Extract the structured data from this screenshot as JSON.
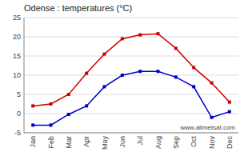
{
  "chart_data": {
    "type": "line",
    "title": "Odense : temperatures (°C)",
    "categories": [
      "Jan",
      "Feb",
      "Mar",
      "Apr",
      "May",
      "Jun",
      "Jul",
      "Aug",
      "Sep",
      "Oct",
      "Nov",
      "Dec"
    ],
    "series": [
      {
        "color": "#cc0000",
        "marker": "square",
        "values": [
          2,
          2.5,
          5,
          10.5,
          15.5,
          19.5,
          20.5,
          20.8,
          17,
          12,
          8,
          3
        ]
      },
      {
        "color": "#0000cc",
        "marker": "square",
        "values": [
          -3,
          -3,
          -0.2,
          2,
          7,
          10,
          11,
          11,
          9.5,
          7,
          -1,
          0.5
        ]
      }
    ],
    "ylim": [
      -5,
      25
    ],
    "yticks": [
      -5,
      0,
      5,
      10,
      15,
      20,
      25
    ],
    "grid": true,
    "annotations": [
      "www.allmetsat.com"
    ]
  }
}
